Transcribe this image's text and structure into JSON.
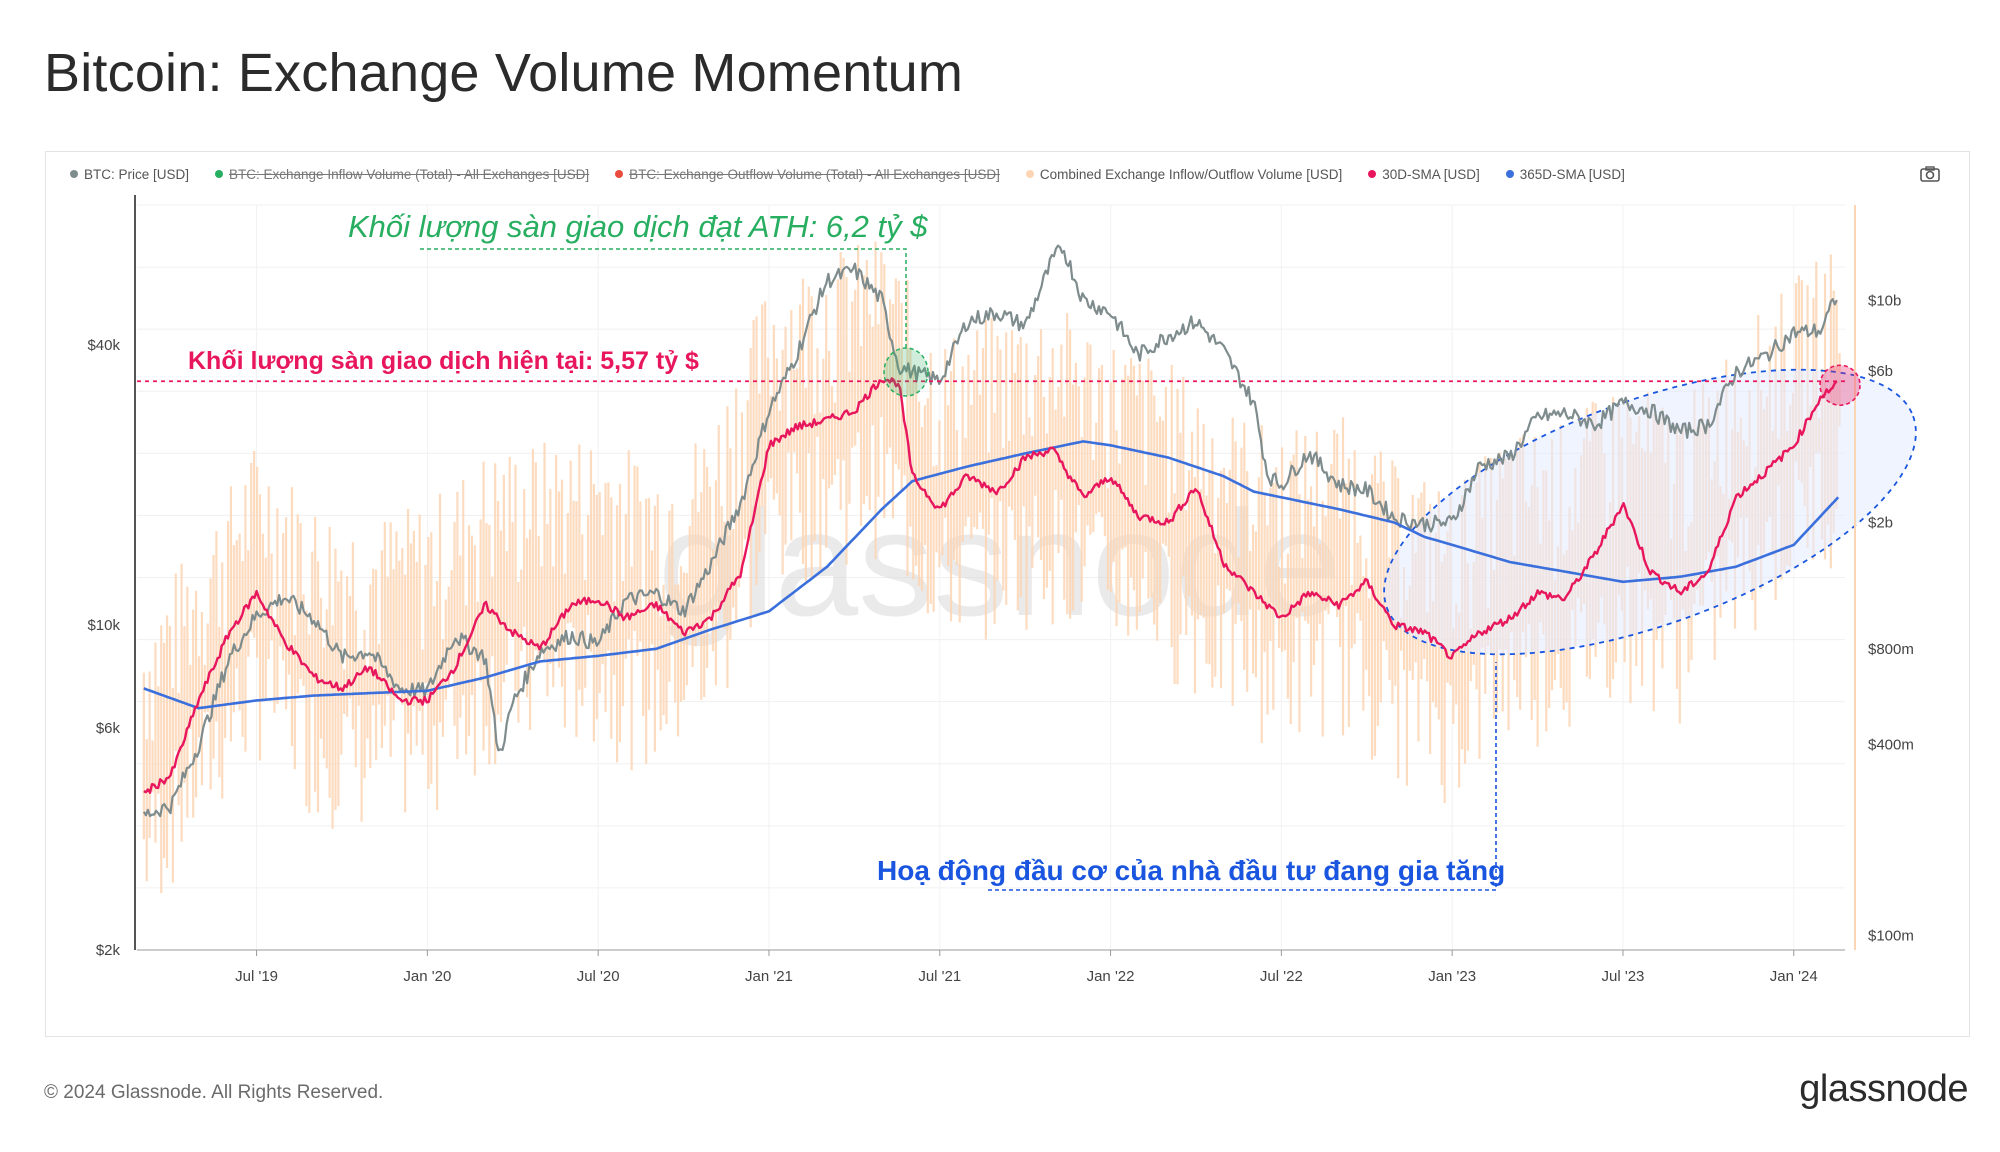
{
  "title": "Bitcoin: Exchange Volume Momentum",
  "footer": {
    "copyright": "© 2024 Glassnode. All Rights Reserved.",
    "brand": "glassnode"
  },
  "watermark": "glassnode",
  "camera_icon": "camera-icon",
  "legend": [
    {
      "label": "BTC: Price [USD]",
      "color": "#7f8c8d",
      "hidden": false
    },
    {
      "label": "BTC: Exchange Inflow Volume (Total) - All Exchanges [USD]",
      "color": "#27ae60",
      "hidden": true
    },
    {
      "label": "BTC: Exchange Outflow Volume (Total) - All Exchanges [USD]",
      "color": "#e74c3c",
      "hidden": true
    },
    {
      "label": "Combined Exchange Inflow/Outflow Volume [USD]",
      "color": "#fcd5b5",
      "hidden": false
    },
    {
      "label": "30D-SMA [USD]",
      "color": "#e8175d",
      "hidden": false
    },
    {
      "label": "365D-SMA [USD]",
      "color": "#3a6fdc",
      "hidden": false
    }
  ],
  "annotations": {
    "ath": "Khối lượng sàn giao dịch đạt ATH: 6,2 tỷ $",
    "current": "Khối lượng sàn giao dịch hiện tại: 5,57 tỷ $",
    "speculation": "Hoạ động đầu cơ của nhà đầu tư đang gia tăng"
  },
  "colors": {
    "price": "#7f8c8d",
    "volume": "#fcd5b5",
    "sma30": "#e8175d",
    "sma365": "#3a6fdc",
    "ath": "#27ae60",
    "current": "#e8175d",
    "speculation": "#1a55e0"
  },
  "chart_data": {
    "type": "line",
    "title": "Bitcoin: Exchange Volume Momentum",
    "x_ticks": [
      "Jul '19",
      "Jan '20",
      "Jul '20",
      "Jan '21",
      "Jul '21",
      "Jan '22",
      "Jul '22",
      "Jan '23",
      "Jul '23",
      "Jan '24"
    ],
    "x_tick_values": [
      2019.5,
      2020.0,
      2020.5,
      2021.0,
      2021.5,
      2022.0,
      2022.5,
      2023.0,
      2023.5,
      2024.0
    ],
    "xlim": [
      2019.15,
      2024.15
    ],
    "y_left": {
      "scale": "log",
      "ticks": [
        "$2k",
        "$6k",
        "$10k",
        "$40k"
      ],
      "tick_values": [
        2000,
        6000,
        10000,
        40000
      ],
      "ylim": [
        2000,
        80000
      ]
    },
    "y_right": {
      "scale": "log",
      "ticks": [
        "$100m",
        "$400m",
        "$800m",
        "$2b",
        "$6b",
        "$10b"
      ],
      "tick_values": [
        100000000,
        400000000,
        800000000,
        2000000000,
        6000000000,
        10000000000
      ],
      "ylim": [
        90000000,
        20000000000
      ]
    },
    "series": [
      {
        "name": "BTC: Price [USD]",
        "axis": "left",
        "x": [
          2019.17,
          2019.25,
          2019.33,
          2019.42,
          2019.5,
          2019.58,
          2019.67,
          2019.75,
          2019.83,
          2019.92,
          2020.0,
          2020.08,
          2020.17,
          2020.21,
          2020.25,
          2020.33,
          2020.42,
          2020.5,
          2020.58,
          2020.67,
          2020.75,
          2020.83,
          2020.92,
          2021.0,
          2021.04,
          2021.08,
          2021.13,
          2021.17,
          2021.25,
          2021.33,
          2021.38,
          2021.42,
          2021.5,
          2021.58,
          2021.67,
          2021.75,
          2021.83,
          2021.86,
          2021.92,
          2022.0,
          2022.08,
          2022.17,
          2022.25,
          2022.33,
          2022.42,
          2022.46,
          2022.5,
          2022.58,
          2022.67,
          2022.75,
          2022.83,
          2022.92,
          2023.0,
          2023.08,
          2023.17,
          2023.25,
          2023.33,
          2023.42,
          2023.5,
          2023.58,
          2023.67,
          2023.75,
          2023.83,
          2023.92,
          2024.0,
          2024.08,
          2024.13
        ],
        "values": [
          3900,
          4100,
          5500,
          8500,
          10500,
          11500,
          10300,
          8500,
          8800,
          7300,
          7200,
          9500,
          8500,
          5200,
          6800,
          8800,
          9500,
          9100,
          11300,
          11700,
          10700,
          13500,
          18500,
          29000,
          33000,
          38000,
          47000,
          55000,
          58000,
          50000,
          36000,
          35000,
          33500,
          45000,
          47000,
          44000,
          61000,
          65000,
          50000,
          47000,
          38000,
          42000,
          45000,
          39000,
          30000,
          21000,
          20000,
          23500,
          20000,
          19500,
          17000,
          16500,
          16600,
          22000,
          23000,
          28000,
          28500,
          27000,
          30000,
          29000,
          26000,
          27000,
          35000,
          38000,
          42500,
          43000,
          52000
        ]
      },
      {
        "name": "30D-SMA [USD]",
        "axis": "right",
        "x": [
          2019.17,
          2019.25,
          2019.33,
          2019.42,
          2019.5,
          2019.58,
          2019.67,
          2019.75,
          2019.83,
          2019.92,
          2020.0,
          2020.08,
          2020.17,
          2020.25,
          2020.33,
          2020.42,
          2020.5,
          2020.58,
          2020.67,
          2020.75,
          2020.83,
          2020.92,
          2021.0,
          2021.08,
          2021.17,
          2021.25,
          2021.33,
          2021.38,
          2021.42,
          2021.5,
          2021.58,
          2021.67,
          2021.75,
          2021.83,
          2021.92,
          2022.0,
          2022.08,
          2022.17,
          2022.25,
          2022.33,
          2022.42,
          2022.5,
          2022.58,
          2022.67,
          2022.75,
          2022.83,
          2022.92,
          2023.0,
          2023.08,
          2023.17,
          2023.25,
          2023.33,
          2023.42,
          2023.5,
          2023.58,
          2023.67,
          2023.75,
          2023.83,
          2023.92,
          2024.0,
          2024.08,
          2024.13
        ],
        "values": [
          280000000,
          320000000,
          550000000,
          900000000,
          1200000000,
          850000000,
          650000000,
          600000000,
          700000000,
          550000000,
          550000000,
          700000000,
          1100000000,
          900000000,
          800000000,
          1100000000,
          1150000000,
          1000000000,
          1100000000,
          900000000,
          1000000000,
          1400000000,
          3500000000,
          4000000000,
          4200000000,
          4500000000,
          5700000000,
          5500000000,
          2800000000,
          2200000000,
          2800000000,
          2500000000,
          3200000000,
          3400000000,
          2400000000,
          2800000000,
          2100000000,
          2000000000,
          2600000000,
          1500000000,
          1200000000,
          1000000000,
          1200000000,
          1100000000,
          1300000000,
          950000000,
          900000000,
          750000000,
          900000000,
          1000000000,
          1200000000,
          1150000000,
          1600000000,
          2300000000,
          1400000000,
          1200000000,
          1400000000,
          2400000000,
          2900000000,
          3500000000,
          5000000000,
          5500000000
        ]
      },
      {
        "name": "365D-SMA [USD]",
        "axis": "right",
        "x": [
          2019.17,
          2019.33,
          2019.5,
          2019.67,
          2019.83,
          2020.0,
          2020.17,
          2020.33,
          2020.5,
          2020.67,
          2020.83,
          2021.0,
          2021.17,
          2021.33,
          2021.42,
          2021.58,
          2021.75,
          2021.92,
          2022.0,
          2022.17,
          2022.33,
          2022.42,
          2022.5,
          2022.67,
          2022.83,
          2022.92,
          2023.0,
          2023.17,
          2023.33,
          2023.5,
          2023.67,
          2023.83,
          2024.0,
          2024.13
        ],
        "values": [
          600000000,
          520000000,
          550000000,
          570000000,
          580000000,
          590000000,
          650000000,
          730000000,
          760000000,
          800000000,
          920000000,
          1050000000,
          1450000000,
          2200000000,
          2700000000,
          3000000000,
          3300000000,
          3600000000,
          3500000000,
          3200000000,
          2800000000,
          2500000000,
          2400000000,
          2200000000,
          2000000000,
          1800000000,
          1700000000,
          1500000000,
          1400000000,
          1300000000,
          1350000000,
          1450000000,
          1700000000,
          2400000000
        ]
      },
      {
        "name": "Combined Exchange Inflow/Outflow Volume [USD]",
        "axis": "right",
        "type": "bar",
        "x": [
          2019.17,
          2019.33,
          2019.5,
          2019.67,
          2019.83,
          2020.0,
          2020.17,
          2020.33,
          2020.5,
          2020.67,
          2020.83,
          2021.0,
          2021.17,
          2021.33,
          2021.5,
          2021.67,
          2021.83,
          2022.0,
          2022.17,
          2022.33,
          2022.5,
          2022.67,
          2022.83,
          2023.0,
          2023.17,
          2023.33,
          2023.5,
          2023.67,
          2023.83,
          2024.0,
          2024.13
        ],
        "values": [
          400000000,
          700000000,
          1400000000,
          900000000,
          800000000,
          900000000,
          1300000000,
          1400000000,
          1500000000,
          1200000000,
          1600000000,
          4500000000,
          5500000000,
          6200000000,
          3000000000,
          3500000000,
          3800000000,
          3000000000,
          2500000000,
          1800000000,
          1500000000,
          1700000000,
          1200000000,
          1000000000,
          1500000000,
          1600000000,
          2200000000,
          1800000000,
          3000000000,
          4500000000,
          6000000000
        ]
      }
    ],
    "reference_lines": [
      {
        "label": "Khối lượng sàn giao dịch hiện tại: 5,57 tỷ $",
        "axis": "right",
        "value": 5570000000
      }
    ]
  }
}
